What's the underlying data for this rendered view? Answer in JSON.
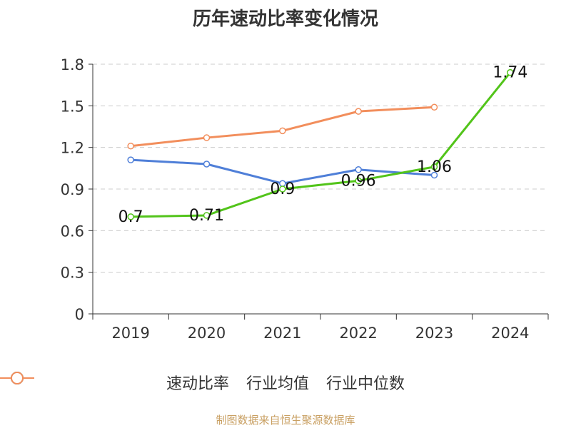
{
  "chart_data": {
    "type": "line",
    "title": "历年速动比率变化情况",
    "categories": [
      "2019",
      "2020",
      "2021",
      "2022",
      "2023",
      "2024"
    ],
    "ylim": [
      0,
      1.8
    ],
    "yticks": [
      "0",
      "0.3",
      "0.6",
      "0.9",
      "1.2",
      "1.5",
      "1.8"
    ],
    "grid": true,
    "legend_position": "bottom",
    "series": [
      {
        "name": "速动比率",
        "color": "#52c41a",
        "values": [
          0.7,
          0.71,
          0.9,
          0.96,
          1.06,
          1.74
        ],
        "labels": [
          "0.7",
          "0.71",
          "0.9",
          "0.96",
          "1.06",
          "1.74"
        ]
      },
      {
        "name": "行业均值",
        "color": "#4f7fd8",
        "values": [
          1.11,
          1.08,
          0.94,
          1.04,
          1.0,
          null
        ]
      },
      {
        "name": "行业中位数",
        "color": "#f28e5c",
        "values": [
          1.21,
          1.27,
          1.32,
          1.46,
          1.49,
          null
        ]
      }
    ]
  },
  "source": "制图数据来自恒生聚源数据库"
}
